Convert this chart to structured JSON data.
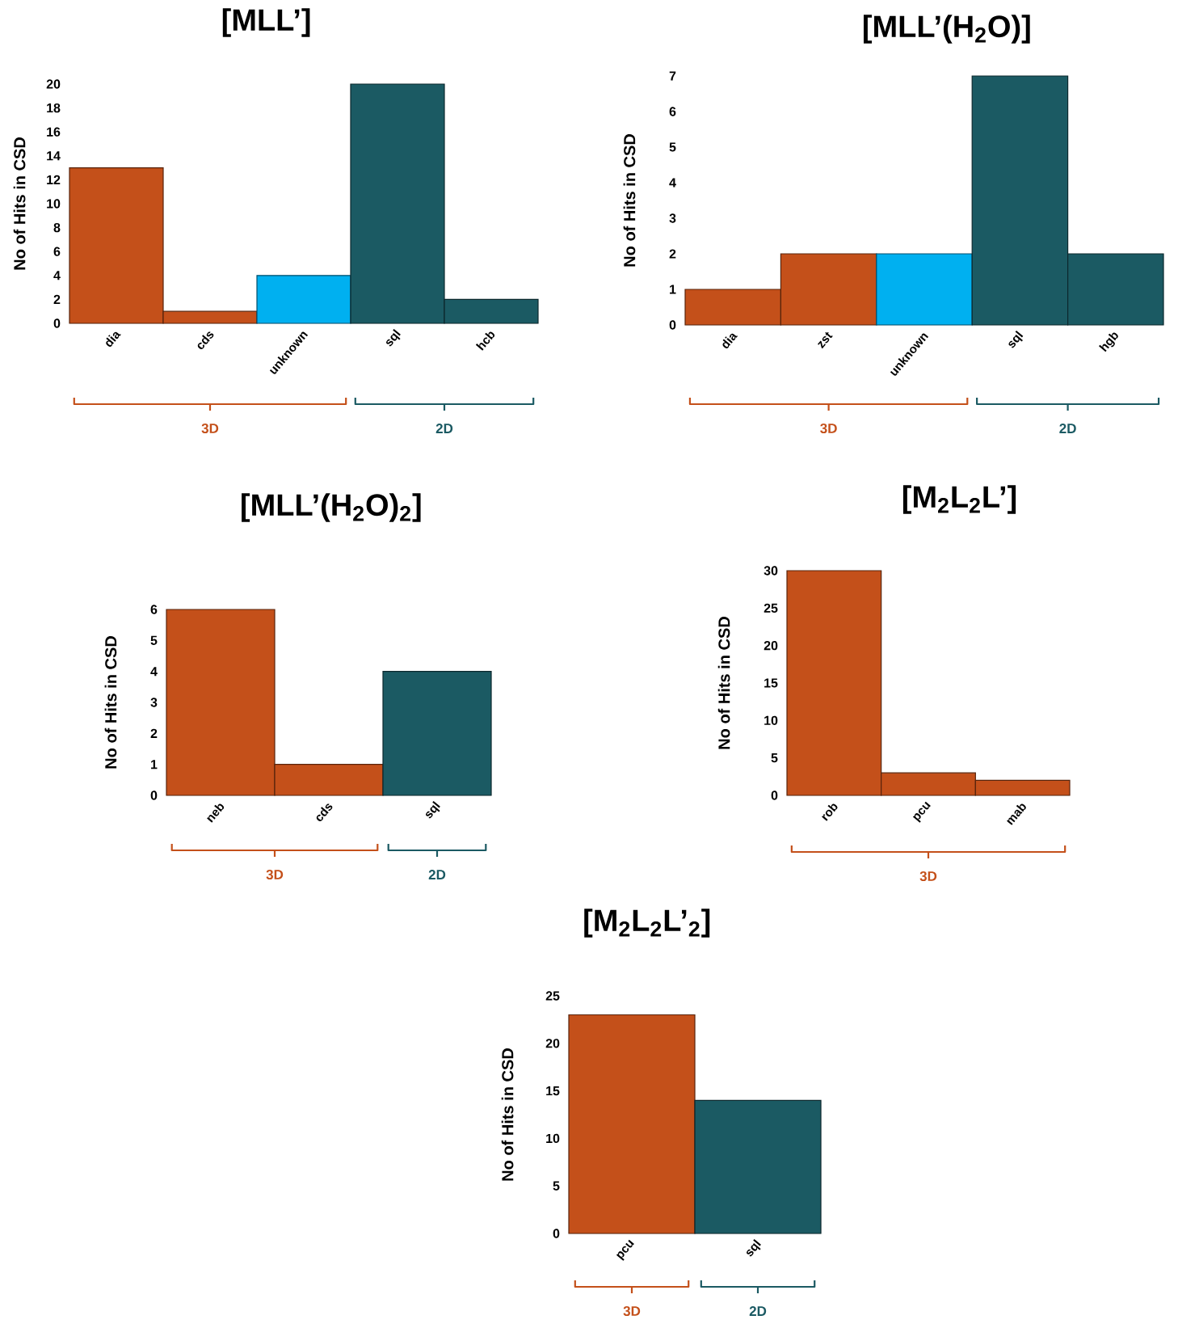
{
  "chart_data": [
    {
      "type": "bar",
      "title": "[MLL’]",
      "ylabel": "No of Hits in CSD",
      "categories": [
        "dia",
        "cds",
        "unknown",
        "sql",
        "hcb"
      ],
      "values": [
        13,
        1,
        4,
        20,
        2
      ],
      "colors": [
        "#c4501a",
        "#c4501a",
        "#00b0f0",
        "#1b5a63",
        "#1b5a63"
      ],
      "ylim": [
        0,
        20
      ],
      "yticks": [
        0,
        2,
        4,
        6,
        8,
        10,
        12,
        14,
        16,
        18,
        20
      ],
      "annotations": [
        "3D",
        "2D"
      ]
    },
    {
      "type": "bar",
      "title": "[MLL’(H$_{2}$O)]",
      "ylabel": "No of Hits in CSD",
      "categories": [
        "dia",
        "zst",
        "unknown",
        "sql",
        "hgb"
      ],
      "values": [
        1,
        2,
        2,
        7,
        2
      ],
      "colors": [
        "#c4501a",
        "#c4501a",
        "#00b0f0",
        "#1b5a63",
        "#1b5a63"
      ],
      "ylim": [
        0,
        7
      ],
      "yticks": [
        0,
        1,
        2,
        3,
        4,
        5,
        6,
        7
      ],
      "annotations": [
        "3D",
        "2D"
      ]
    },
    {
      "type": "bar",
      "title": "[MLL’(H$_{2}$O)$_{2}$]",
      "ylabel": "No of Hits in CSD",
      "categories": [
        "neb",
        "cds",
        "sql"
      ],
      "values": [
        6,
        1,
        4
      ],
      "colors": [
        "#c4501a",
        "#c4501a",
        "#1b5a63"
      ],
      "ylim": [
        0,
        6
      ],
      "yticks": [
        0,
        1,
        2,
        3,
        4,
        5,
        6
      ],
      "annotations": [
        "3D",
        "2D"
      ]
    },
    {
      "type": "bar",
      "title": "[M$_{2}$L$_{2}$L’]",
      "ylabel": "No of Hits in CSD",
      "categories": [
        "rob",
        "pcu",
        "mab"
      ],
      "values": [
        30,
        3,
        2
      ],
      "colors": [
        "#c4501a",
        "#c4501a",
        "#c4501a"
      ],
      "ylim": [
        0,
        30
      ],
      "yticks": [
        0,
        5,
        10,
        15,
        20,
        25,
        30
      ],
      "annotations": [
        "3D"
      ]
    },
    {
      "type": "bar",
      "title": "[M$_{2}$L$_{2}$L’$_{2}$]",
      "ylabel": "No of Hits in CSD",
      "categories": [
        "pcu",
        "sql"
      ],
      "values": [
        23,
        14
      ],
      "colors": [
        "#c4501a",
        "#1b5a63"
      ],
      "ylim": [
        0,
        25
      ],
      "yticks": [
        0,
        5,
        10,
        15,
        20,
        25
      ],
      "annotations": [
        "3D",
        "2D"
      ]
    }
  ]
}
